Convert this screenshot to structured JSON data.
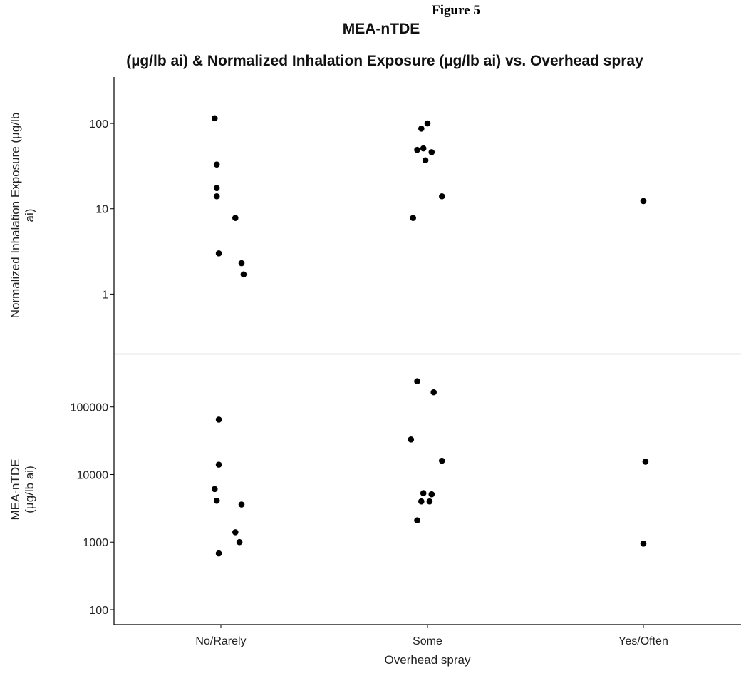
{
  "figure_label": "Figure 5",
  "title_line1": "MEA-nTDE",
  "title_line2": "(µg/lb ai) & Normalized Inhalation Exposure (µg/lb ai) vs. Overhead spray",
  "chart_data": {
    "type": "scatter",
    "xlabel": "Overhead spray",
    "categories": [
      "No/Rarely",
      "Some",
      "Yes/Often"
    ],
    "panels": [
      {
        "ylabel_lines": [
          "Normalized Inhalation Exposure (µg/lb",
          "ai)"
        ],
        "yscale": "log",
        "ylim": [
          0.2,
          350
        ],
        "yticks": [
          1,
          10,
          100
        ],
        "ytick_labels": [
          "1",
          "10",
          "100"
        ],
        "points": [
          {
            "category": "No/Rarely",
            "jitter": -0.03,
            "y": 115
          },
          {
            "category": "No/Rarely",
            "jitter": -0.02,
            "y": 33
          },
          {
            "category": "No/Rarely",
            "jitter": -0.02,
            "y": 17.5
          },
          {
            "category": "No/Rarely",
            "jitter": -0.02,
            "y": 14
          },
          {
            "category": "No/Rarely",
            "jitter": 0.07,
            "y": 7.8
          },
          {
            "category": "No/Rarely",
            "jitter": -0.01,
            "y": 3
          },
          {
            "category": "No/Rarely",
            "jitter": 0.1,
            "y": 2.3
          },
          {
            "category": "No/Rarely",
            "jitter": 0.11,
            "y": 1.7
          },
          {
            "category": "Some",
            "jitter": 0.0,
            "y": 100
          },
          {
            "category": "Some",
            "jitter": -0.03,
            "y": 87
          },
          {
            "category": "Some",
            "jitter": -0.02,
            "y": 51
          },
          {
            "category": "Some",
            "jitter": -0.05,
            "y": 49
          },
          {
            "category": "Some",
            "jitter": 0.02,
            "y": 46
          },
          {
            "category": "Some",
            "jitter": -0.01,
            "y": 37
          },
          {
            "category": "Some",
            "jitter": 0.07,
            "y": 14
          },
          {
            "category": "Some",
            "jitter": -0.07,
            "y": 7.8
          },
          {
            "category": "Yes/Often",
            "jitter": 0.0,
            "y": 12.3
          }
        ]
      },
      {
        "ylabel_lines": [
          "MEA-nTDE",
          "(µg/lb ai)"
        ],
        "yscale": "log",
        "ylim": [
          60,
          600000
        ],
        "yticks": [
          100,
          1000,
          10000,
          100000
        ],
        "ytick_labels": [
          "100",
          "1000",
          "10000",
          "100000"
        ],
        "points": [
          {
            "category": "No/Rarely",
            "jitter": -0.01,
            "y": 65000
          },
          {
            "category": "No/Rarely",
            "jitter": -0.01,
            "y": 14000
          },
          {
            "category": "No/Rarely",
            "jitter": -0.03,
            "y": 6100
          },
          {
            "category": "No/Rarely",
            "jitter": -0.02,
            "y": 4100
          },
          {
            "category": "No/Rarely",
            "jitter": 0.1,
            "y": 3600
          },
          {
            "category": "No/Rarely",
            "jitter": 0.07,
            "y": 1400
          },
          {
            "category": "No/Rarely",
            "jitter": 0.09,
            "y": 1000
          },
          {
            "category": "No/Rarely",
            "jitter": -0.01,
            "y": 680
          },
          {
            "category": "Some",
            "jitter": -0.05,
            "y": 240000
          },
          {
            "category": "Some",
            "jitter": 0.03,
            "y": 165000
          },
          {
            "category": "Some",
            "jitter": -0.08,
            "y": 33000
          },
          {
            "category": "Some",
            "jitter": 0.07,
            "y": 16000
          },
          {
            "category": "Some",
            "jitter": -0.02,
            "y": 5300
          },
          {
            "category": "Some",
            "jitter": 0.02,
            "y": 5100
          },
          {
            "category": "Some",
            "jitter": -0.03,
            "y": 4000
          },
          {
            "category": "Some",
            "jitter": 0.01,
            "y": 4000
          },
          {
            "category": "Some",
            "jitter": -0.05,
            "y": 2100
          },
          {
            "category": "Yes/Often",
            "jitter": 0.01,
            "y": 15500
          },
          {
            "category": "Yes/Often",
            "jitter": 0.0,
            "y": 950
          }
        ]
      }
    ],
    "grid": false,
    "legend": "none",
    "marker_color": "#000000",
    "divider_color": "#cfcfcf"
  }
}
